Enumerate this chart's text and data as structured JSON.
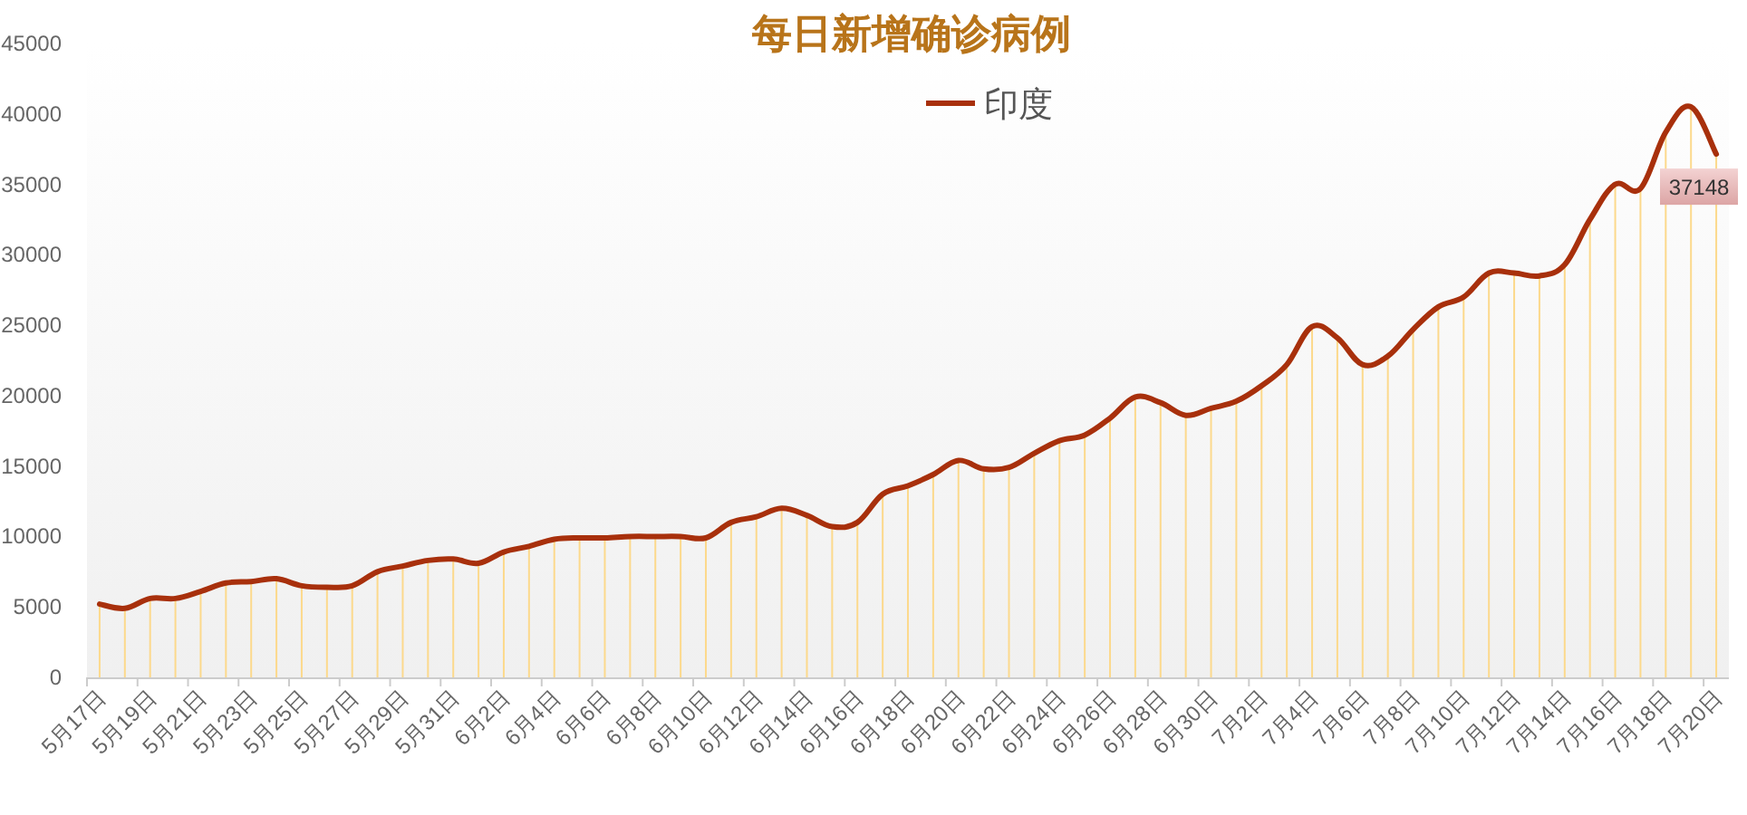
{
  "chart_data": {
    "type": "line",
    "title": "每日新增确诊病例",
    "categories": [
      "5月17日",
      null,
      "5月19日",
      null,
      "5月21日",
      null,
      "5月23日",
      null,
      "5月25日",
      null,
      "5月27日",
      null,
      "5月29日",
      null,
      "5月31日",
      null,
      "6月2日",
      null,
      "6月4日",
      null,
      "6月6日",
      null,
      "6月8日",
      null,
      "6月10日",
      null,
      "6月12日",
      null,
      "6月14日",
      null,
      "6月16日",
      null,
      "6月18日",
      null,
      "6月20日",
      null,
      "6月22日",
      null,
      "6月24日",
      null,
      "6月26日",
      null,
      "6月28日",
      null,
      "6月30日",
      null,
      "7月2日",
      null,
      "7月4日",
      null,
      "7月6日",
      null,
      "7月8日",
      null,
      "7月10日",
      null,
      "7月12日",
      null,
      "7月14日",
      null,
      "7月16日",
      null,
      "7月18日",
      null,
      "7月20日"
    ],
    "series": [
      {
        "type": "bar",
        "color": "#fcd98c",
        "values": [
          5200,
          4900,
          5600,
          5600,
          6100,
          6700,
          6800,
          7000,
          6500,
          6400,
          6500,
          7500,
          7900,
          8300,
          8400,
          8100,
          8900,
          9300,
          9800,
          9900,
          9900,
          10000,
          10000,
          10000,
          9900,
          11000,
          11400,
          12000,
          11500,
          10700,
          11000,
          13000,
          13600,
          14400,
          15400,
          14800,
          14900,
          15900,
          16800,
          17200,
          18400,
          19900,
          19500,
          18600,
          19100,
          19600,
          20700,
          22200,
          24900,
          24100,
          22200,
          22800,
          24700,
          26300,
          27000,
          28700,
          28700,
          28500,
          29300,
          32500,
          35000,
          34700,
          38700,
          40500,
          37100
        ]
      },
      {
        "name": "印度",
        "color": "#a8300c",
        "values": [
          5200,
          4900,
          5600,
          5600,
          6100,
          6700,
          6800,
          7000,
          6500,
          6400,
          6500,
          7500,
          7900,
          8300,
          8400,
          8100,
          8900,
          9300,
          9800,
          9900,
          9900,
          10000,
          10000,
          10000,
          9900,
          11000,
          11400,
          12000,
          11500,
          10700,
          11000,
          13000,
          13600,
          14400,
          15400,
          14800,
          14900,
          15900,
          16800,
          17200,
          18400,
          19900,
          19500,
          18600,
          19100,
          19600,
          20700,
          22200,
          24900,
          24100,
          22200,
          22800,
          24700,
          26300,
          27000,
          28700,
          28700,
          28500,
          29300,
          32500,
          35000,
          34700,
          38700,
          40500,
          37148
        ],
        "value_labels": [
          null,
          null,
          null,
          null,
          null,
          null,
          null,
          null,
          null,
          null,
          null,
          null,
          null,
          null,
          null,
          null,
          null,
          null,
          null,
          null,
          null,
          null,
          null,
          null,
          null,
          null,
          null,
          null,
          null,
          null,
          null,
          null,
          null,
          null,
          null,
          null,
          null,
          null,
          null,
          null,
          null,
          null,
          null,
          null,
          null,
          null,
          null,
          null,
          null,
          null,
          null,
          null,
          null,
          null,
          null,
          null,
          null,
          null,
          null,
          null,
          null,
          null,
          null,
          null,
          "37148"
        ]
      }
    ],
    "ylim": [
      0,
      45000
    ],
    "yticks": [
      0,
      5000,
      10000,
      15000,
      20000,
      25000,
      30000,
      35000,
      40000,
      45000
    ],
    "legend": "top"
  }
}
